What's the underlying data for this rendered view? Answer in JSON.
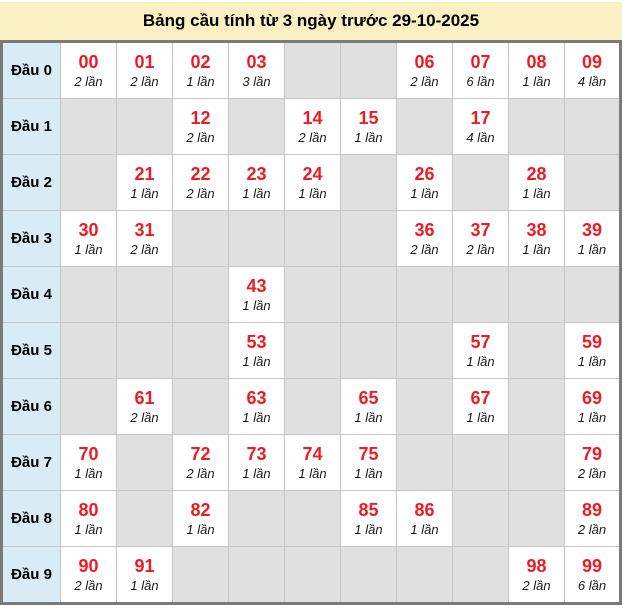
{
  "title": "Bảng cầu tính từ 3 ngày trước 29-10-2025",
  "colors": {
    "title_bg": "#fbf0c3",
    "row_header_bg": "#d9ecf6",
    "empty_cell_bg": "#e0e0e0",
    "filled_cell_bg": "#ffffff",
    "number_red": "#ed1c24",
    "outer_border": "#7a7a7a",
    "inner_border": "#c6c6c6"
  },
  "chart_data": {
    "type": "table",
    "title": "Bảng cầu tính từ 3 ngày trước 29-10-2025",
    "row_labels": [
      "Đầu 0",
      "Đầu 1",
      "Đầu 2",
      "Đầu 3",
      "Đầu 4",
      "Đầu 5",
      "Đầu 6",
      "Đầu 7",
      "Đầu 8",
      "Đầu 9"
    ],
    "columns_per_row": 10,
    "unit": "lần",
    "rows": [
      {
        "label": "Đầu 0",
        "cells": [
          {
            "number": "00",
            "count": "2 lần"
          },
          {
            "number": "01",
            "count": "2 lần"
          },
          {
            "number": "02",
            "count": "1 lần"
          },
          {
            "number": "03",
            "count": "3 lần"
          },
          null,
          null,
          {
            "number": "06",
            "count": "2 lần"
          },
          {
            "number": "07",
            "count": "6 lần"
          },
          {
            "number": "08",
            "count": "1 lần"
          },
          {
            "number": "09",
            "count": "4 lần"
          }
        ]
      },
      {
        "label": "Đầu 1",
        "cells": [
          null,
          null,
          {
            "number": "12",
            "count": "2 lần"
          },
          null,
          {
            "number": "14",
            "count": "2 lần"
          },
          {
            "number": "15",
            "count": "1 lần"
          },
          null,
          {
            "number": "17",
            "count": "4 lần"
          },
          null,
          null
        ]
      },
      {
        "label": "Đầu 2",
        "cells": [
          null,
          {
            "number": "21",
            "count": "1 lần"
          },
          {
            "number": "22",
            "count": "2 lần"
          },
          {
            "number": "23",
            "count": "1 lần"
          },
          {
            "number": "24",
            "count": "1 lần"
          },
          null,
          {
            "number": "26",
            "count": "1 lần"
          },
          null,
          {
            "number": "28",
            "count": "1 lần"
          },
          null
        ]
      },
      {
        "label": "Đầu 3",
        "cells": [
          {
            "number": "30",
            "count": "1 lần"
          },
          {
            "number": "31",
            "count": "2 lần"
          },
          null,
          null,
          null,
          null,
          {
            "number": "36",
            "count": "2 lần"
          },
          {
            "number": "37",
            "count": "2 lần"
          },
          {
            "number": "38",
            "count": "1 lần"
          },
          {
            "number": "39",
            "count": "1 lần"
          }
        ]
      },
      {
        "label": "Đầu 4",
        "cells": [
          null,
          null,
          null,
          {
            "number": "43",
            "count": "1 lần"
          },
          null,
          null,
          null,
          null,
          null,
          null
        ]
      },
      {
        "label": "Đầu 5",
        "cells": [
          null,
          null,
          null,
          {
            "number": "53",
            "count": "1 lần"
          },
          null,
          null,
          null,
          {
            "number": "57",
            "count": "1 lần"
          },
          null,
          {
            "number": "59",
            "count": "1 lần"
          }
        ]
      },
      {
        "label": "Đầu 6",
        "cells": [
          null,
          {
            "number": "61",
            "count": "2 lần"
          },
          null,
          {
            "number": "63",
            "count": "1 lần"
          },
          null,
          {
            "number": "65",
            "count": "1 lần"
          },
          null,
          {
            "number": "67",
            "count": "1 lần"
          },
          null,
          {
            "number": "69",
            "count": "1 lần"
          }
        ]
      },
      {
        "label": "Đầu 7",
        "cells": [
          {
            "number": "70",
            "count": "1 lần"
          },
          null,
          {
            "number": "72",
            "count": "2 lần"
          },
          {
            "number": "73",
            "count": "1 lần"
          },
          {
            "number": "74",
            "count": "1 lần"
          },
          {
            "number": "75",
            "count": "1 lần"
          },
          null,
          null,
          null,
          {
            "number": "79",
            "count": "2 lần"
          }
        ]
      },
      {
        "label": "Đầu 8",
        "cells": [
          {
            "number": "80",
            "count": "1 lần"
          },
          null,
          {
            "number": "82",
            "count": "1 lần"
          },
          null,
          null,
          {
            "number": "85",
            "count": "1 lần"
          },
          {
            "number": "86",
            "count": "1 lần"
          },
          null,
          null,
          {
            "number": "89",
            "count": "2 lần"
          }
        ]
      },
      {
        "label": "Đầu 9",
        "cells": [
          {
            "number": "90",
            "count": "2 lần"
          },
          {
            "number": "91",
            "count": "1 lần"
          },
          null,
          null,
          null,
          null,
          null,
          null,
          {
            "number": "98",
            "count": "2 lần"
          },
          {
            "number": "99",
            "count": "6 lần"
          }
        ]
      }
    ]
  }
}
